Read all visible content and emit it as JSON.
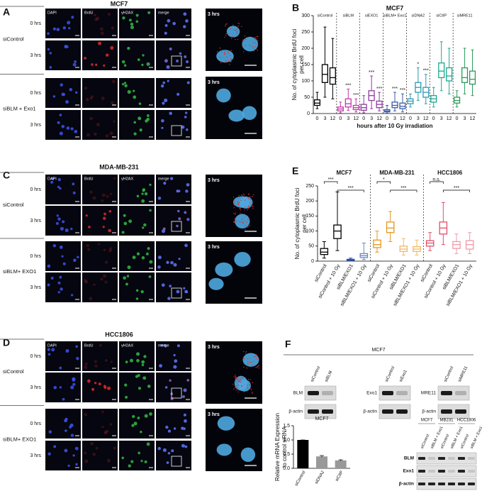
{
  "panel_A": {
    "label": "A",
    "title": "MCF7",
    "columns": [
      "DAPI",
      "BrdU",
      "γH2AX",
      "merge"
    ],
    "rows": [
      "0 hrs",
      "3 hrs",
      "0 hrs",
      "3 hrs"
    ],
    "groups": [
      "siControl",
      "siBLM + Exo1"
    ],
    "zoom_labels": [
      "3 hrs",
      "3 hrs"
    ]
  },
  "panel_C": {
    "label": "C",
    "title": "MDA-MB-231",
    "columns": [
      "DAPI",
      "BrdU",
      "γH2AX",
      "merge"
    ],
    "rows": [
      "0 hrs",
      "3 hrs",
      "0 hrs",
      "3 hrs"
    ],
    "groups": [
      "siControl",
      "siBLM+ EXO1"
    ],
    "zoom_labels": [
      "3 hrs",
      "3 hrs"
    ]
  },
  "panel_D": {
    "label": "D",
    "title": "HCC1806",
    "columns": [
      "DAPI",
      "BrdU",
      "γH2AX",
      "merge"
    ],
    "rows": [
      "0 hrs",
      "3 hrs",
      "0 hrs",
      "3 hrs"
    ],
    "groups": [
      "siControl",
      "siBLM+ EXO1"
    ],
    "zoom_labels": [
      "3 hrs",
      "3 hrs"
    ]
  },
  "panel_F": {
    "label": "F",
    "header": "MCF7",
    "blots": [
      {
        "lanes": [
          "siControl",
          "siBLM"
        ],
        "rows": [
          "BLM",
          "β-actin"
        ]
      },
      {
        "lanes": [
          "siControl",
          "siExo1"
        ],
        "rows": [
          "Exo1",
          "β-actin"
        ]
      },
      {
        "lanes": [
          "siControl",
          "siMRE11"
        ],
        "rows": [
          "MRE11",
          "β-actin"
        ]
      }
    ],
    "combined_blot": {
      "cell_lines": [
        "MCF7",
        "MB231",
        "HCC1806"
      ],
      "lanes": [
        "siControl",
        "siBLM + Exo1"
      ],
      "rows": [
        "BLM",
        "Exo1",
        "β-actin"
      ]
    }
  },
  "chart_data": [
    {
      "type": "box",
      "panel_label": "B",
      "title": "MCF7",
      "xlabel": "hours after 10 Gy irradiation",
      "ylabel": [
        "No. of cytoplasmic BrdU foci",
        "per cell"
      ],
      "categories": [
        "0",
        "3",
        "12"
      ],
      "ylim": [
        0,
        300
      ],
      "yticks": [
        0,
        50,
        100,
        150,
        200,
        250,
        300
      ],
      "groups": [
        {
          "name": "siControl",
          "color": "#000000",
          "boxes": [
            [
              15,
              25,
              32,
              42,
              65
            ],
            [
              50,
              95,
              120,
              150,
              265
            ],
            [
              45,
              90,
              110,
              140,
              230
            ]
          ],
          "significance": [
            null,
            null,
            null
          ]
        },
        {
          "name": "siBLM",
          "color": "#c03aa8",
          "boxes": [
            [
              2,
              8,
              14,
              20,
              35
            ],
            [
              10,
              20,
              30,
              45,
              75
            ],
            [
              5,
              12,
              18,
              25,
              45
            ]
          ],
          "significance": [
            null,
            "***",
            "***"
          ]
        },
        {
          "name": "siEXO1",
          "color": "#8e3c9c",
          "boxes": [
            [
              2,
              10,
              18,
              28,
              55
            ],
            [
              15,
              40,
              55,
              70,
              115
            ],
            [
              8,
              18,
              28,
              38,
              65
            ]
          ],
          "significance": [
            null,
            "***",
            "***"
          ]
        },
        {
          "name": "siBLM+ Exo1",
          "color": "#3b5ba8",
          "boxes": [
            [
              1,
              5,
              8,
              12,
              25
            ],
            [
              8,
              18,
              25,
              35,
              65
            ],
            [
              5,
              15,
              22,
              32,
              60
            ]
          ],
          "significance": [
            null,
            "***",
            "***"
          ]
        },
        {
          "name": "siDNA2",
          "color": "#2a9ab0",
          "boxes": [
            [
              20,
              30,
              38,
              45,
              60
            ],
            [
              40,
              65,
              80,
              95,
              140
            ],
            [
              30,
              50,
              65,
              80,
              120
            ]
          ],
          "significance": [
            null,
            "*",
            "***"
          ]
        },
        {
          "name": "siCtIP",
          "color": "#1aa88f",
          "boxes": [
            [
              20,
              35,
              45,
              55,
              80
            ],
            [
              70,
              110,
              130,
              155,
              220
            ],
            [
              60,
              100,
              115,
              140,
              200
            ]
          ],
          "significance": [
            null,
            null,
            null
          ]
        },
        {
          "name": "siMRE11",
          "color": "#2a9a5a",
          "boxes": [
            [
              20,
              32,
              40,
              50,
              70
            ],
            [
              60,
              95,
              110,
              140,
              200
            ],
            [
              55,
              90,
              105,
              130,
              195
            ]
          ],
          "significance": [
            null,
            null,
            null
          ]
        }
      ]
    },
    {
      "type": "box",
      "panel_label": "E",
      "ylabel": [
        "No. of cytoplasmic BrdU foci",
        "per cell"
      ],
      "categories": [
        "siControl",
        "siControl + 10 Gy",
        "siBLM/EXO1",
        "siBLM/EXO1 + 10 Gy"
      ],
      "ylim": [
        0,
        250
      ],
      "yticks": [
        0,
        50,
        100,
        150,
        200,
        250
      ],
      "groups": [
        {
          "name": "MCF7",
          "colors": [
            "#000000",
            "#000000",
            "#2f4fa0",
            "#6a86c8"
          ],
          "boxes": [
            [
              10,
              22,
              30,
              42,
              65
            ],
            [
              35,
              75,
              100,
              120,
              230
            ],
            [
              0,
              2,
              4,
              6,
              10
            ],
            [
              5,
              12,
              18,
              25,
              60
            ]
          ],
          "comparisons": [
            {
              "from": 0,
              "to": 1,
              "label": "***"
            },
            {
              "from": 1,
              "to": 3,
              "label": "***"
            }
          ]
        },
        {
          "name": "MDA-MB-231",
          "colors": [
            "#e8951e",
            "#e8951e",
            "#f2b866",
            "#f2b866"
          ],
          "boxes": [
            [
              30,
              45,
              55,
              70,
              100
            ],
            [
              65,
              95,
              110,
              130,
              165
            ],
            [
              20,
              32,
              40,
              50,
              75
            ],
            [
              20,
              32,
              40,
              48,
              70
            ]
          ],
          "comparisons": [
            {
              "from": 0,
              "to": 1,
              "label": "*"
            },
            {
              "from": 1,
              "to": 3,
              "label": "***"
            }
          ]
        },
        {
          "name": "HCC1806",
          "colors": [
            "#e0506a",
            "#e0506a",
            "#f09aa8",
            "#f09aa8"
          ],
          "boxes": [
            [
              35,
              50,
              60,
              68,
              95
            ],
            [
              55,
              90,
              110,
              130,
              195
            ],
            [
              25,
              42,
              55,
              65,
              90
            ],
            [
              25,
              40,
              55,
              68,
              95
            ]
          ],
          "comparisons": [
            {
              "from": 0,
              "to": 1,
              "label": "n.s."
            },
            {
              "from": 1,
              "to": 3,
              "label": "***"
            }
          ]
        }
      ]
    },
    {
      "type": "bar",
      "title": "MCF7",
      "ylabel": [
        "Relative mRNA Expression",
        "to control siRNA"
      ],
      "categories": [
        "siControl",
        "siDNA2",
        "siCtIP"
      ],
      "values": [
        1.0,
        0.42,
        0.28
      ],
      "errors": [
        0,
        0.03,
        0.02
      ],
      "colors": [
        "#000000",
        "#999999",
        "#999999"
      ],
      "ylim": [
        0,
        1.5
      ],
      "yticks": [
        {
          "value": 0,
          "label": "0.0"
        },
        {
          "value": 0.5,
          "label": "0.5"
        },
        {
          "value": 1,
          "label": "1.0"
        },
        {
          "value": 1.5,
          "label": "1.5"
        }
      ]
    }
  ]
}
